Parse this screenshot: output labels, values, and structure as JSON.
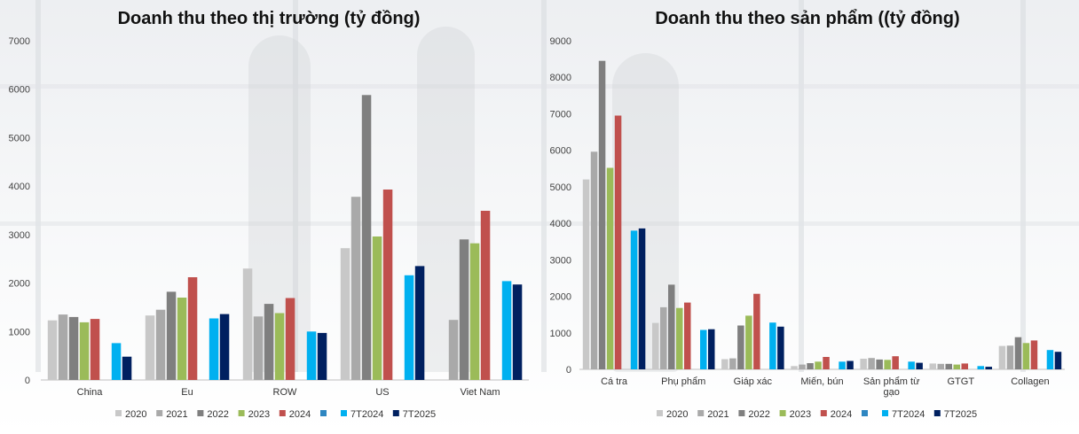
{
  "colors": {
    "2020": "#c8c8c8",
    "2021": "#a9a9a9",
    "2022": "#7f7f7f",
    "2023": "#9bbb59",
    "2024": "#c0504d",
    "blank": "#2e86c1",
    "7T2024": "#00b0f0",
    "7T2025": "#002060"
  },
  "chart_data": [
    {
      "type": "bar",
      "title": "Doanh thu theo thị trường (tỷ đồng)",
      "xlabel": "",
      "ylabel": "",
      "ylim": [
        0,
        7000
      ],
      "yticks": [
        "0",
        "1000",
        "2000",
        "3000",
        "4000",
        "5000",
        "6000",
        "7000"
      ],
      "grid": false,
      "legend_position": "bottom",
      "categories": [
        "China",
        "Eu",
        "ROW",
        "US",
        "Viet Nam"
      ],
      "series": [
        {
          "name": "2020",
          "key": "2020",
          "values": [
            1230,
            1330,
            2300,
            2720,
            null
          ]
        },
        {
          "name": "2021",
          "key": "2021",
          "values": [
            1350,
            1450,
            1310,
            3780,
            1240
          ]
        },
        {
          "name": "2022",
          "key": "2022",
          "values": [
            1300,
            1820,
            1570,
            5880,
            2900
          ]
        },
        {
          "name": "2023",
          "key": "2023",
          "values": [
            1190,
            1700,
            1380,
            2960,
            2820
          ]
        },
        {
          "name": "2024",
          "key": "2024",
          "values": [
            1260,
            2120,
            1690,
            3930,
            3490
          ]
        },
        {
          "name": "",
          "key": "blank",
          "values": [
            null,
            null,
            null,
            null,
            null
          ]
        },
        {
          "name": "7T2024",
          "key": "7T2024",
          "values": [
            760,
            1270,
            1000,
            2160,
            2040
          ]
        },
        {
          "name": "7T2025",
          "key": "7T2025",
          "values": [
            480,
            1360,
            970,
            2350,
            1970
          ]
        }
      ]
    },
    {
      "type": "bar",
      "title": "Doanh thu theo sản phẩm ((tỷ đồng)",
      "xlabel": "",
      "ylabel": "",
      "ylim": [
        0,
        9000
      ],
      "yticks": [
        "0",
        "1000",
        "2000",
        "3000",
        "4000",
        "5000",
        "6000",
        "7000",
        "8000",
        "9000"
      ],
      "grid": false,
      "legend_position": "bottom",
      "categories": [
        "Cá tra",
        "Phụ phẩm",
        "Giáp xác",
        "Miến, bún",
        "Sản phẩm từ gạo",
        "GTGT",
        "Collagen"
      ],
      "category_lines": [
        [
          "Cá tra"
        ],
        [
          "Phụ phẩm"
        ],
        [
          "Giáp xác"
        ],
        [
          "Miến, bún"
        ],
        [
          "Sản phẩm từ",
          "gạo"
        ],
        [
          "GTGT"
        ],
        [
          "Collagen"
        ]
      ],
      "series": [
        {
          "name": "2020",
          "key": "2020",
          "values": [
            5200,
            1270,
            280,
            90,
            290,
            160,
            640
          ]
        },
        {
          "name": "2021",
          "key": "2021",
          "values": [
            5960,
            1700,
            300,
            130,
            310,
            150,
            650
          ]
        },
        {
          "name": "2022",
          "key": "2022",
          "values": [
            8450,
            2320,
            1200,
            170,
            270,
            150,
            880
          ]
        },
        {
          "name": "2023",
          "key": "2023",
          "values": [
            5520,
            1680,
            1470,
            210,
            260,
            130,
            720
          ]
        },
        {
          "name": "2024",
          "key": "2024",
          "values": [
            6950,
            1830,
            2070,
            340,
            360,
            160,
            790
          ]
        },
        {
          "name": "",
          "key": "blank",
          "values": [
            null,
            null,
            null,
            null,
            null,
            null,
            null
          ]
        },
        {
          "name": "7T2024",
          "key": "7T2024",
          "values": [
            3800,
            1080,
            1280,
            210,
            210,
            90,
            530
          ]
        },
        {
          "name": "7T2025",
          "key": "7T2025",
          "values": [
            3860,
            1100,
            1170,
            230,
            180,
            70,
            480
          ]
        }
      ]
    }
  ]
}
